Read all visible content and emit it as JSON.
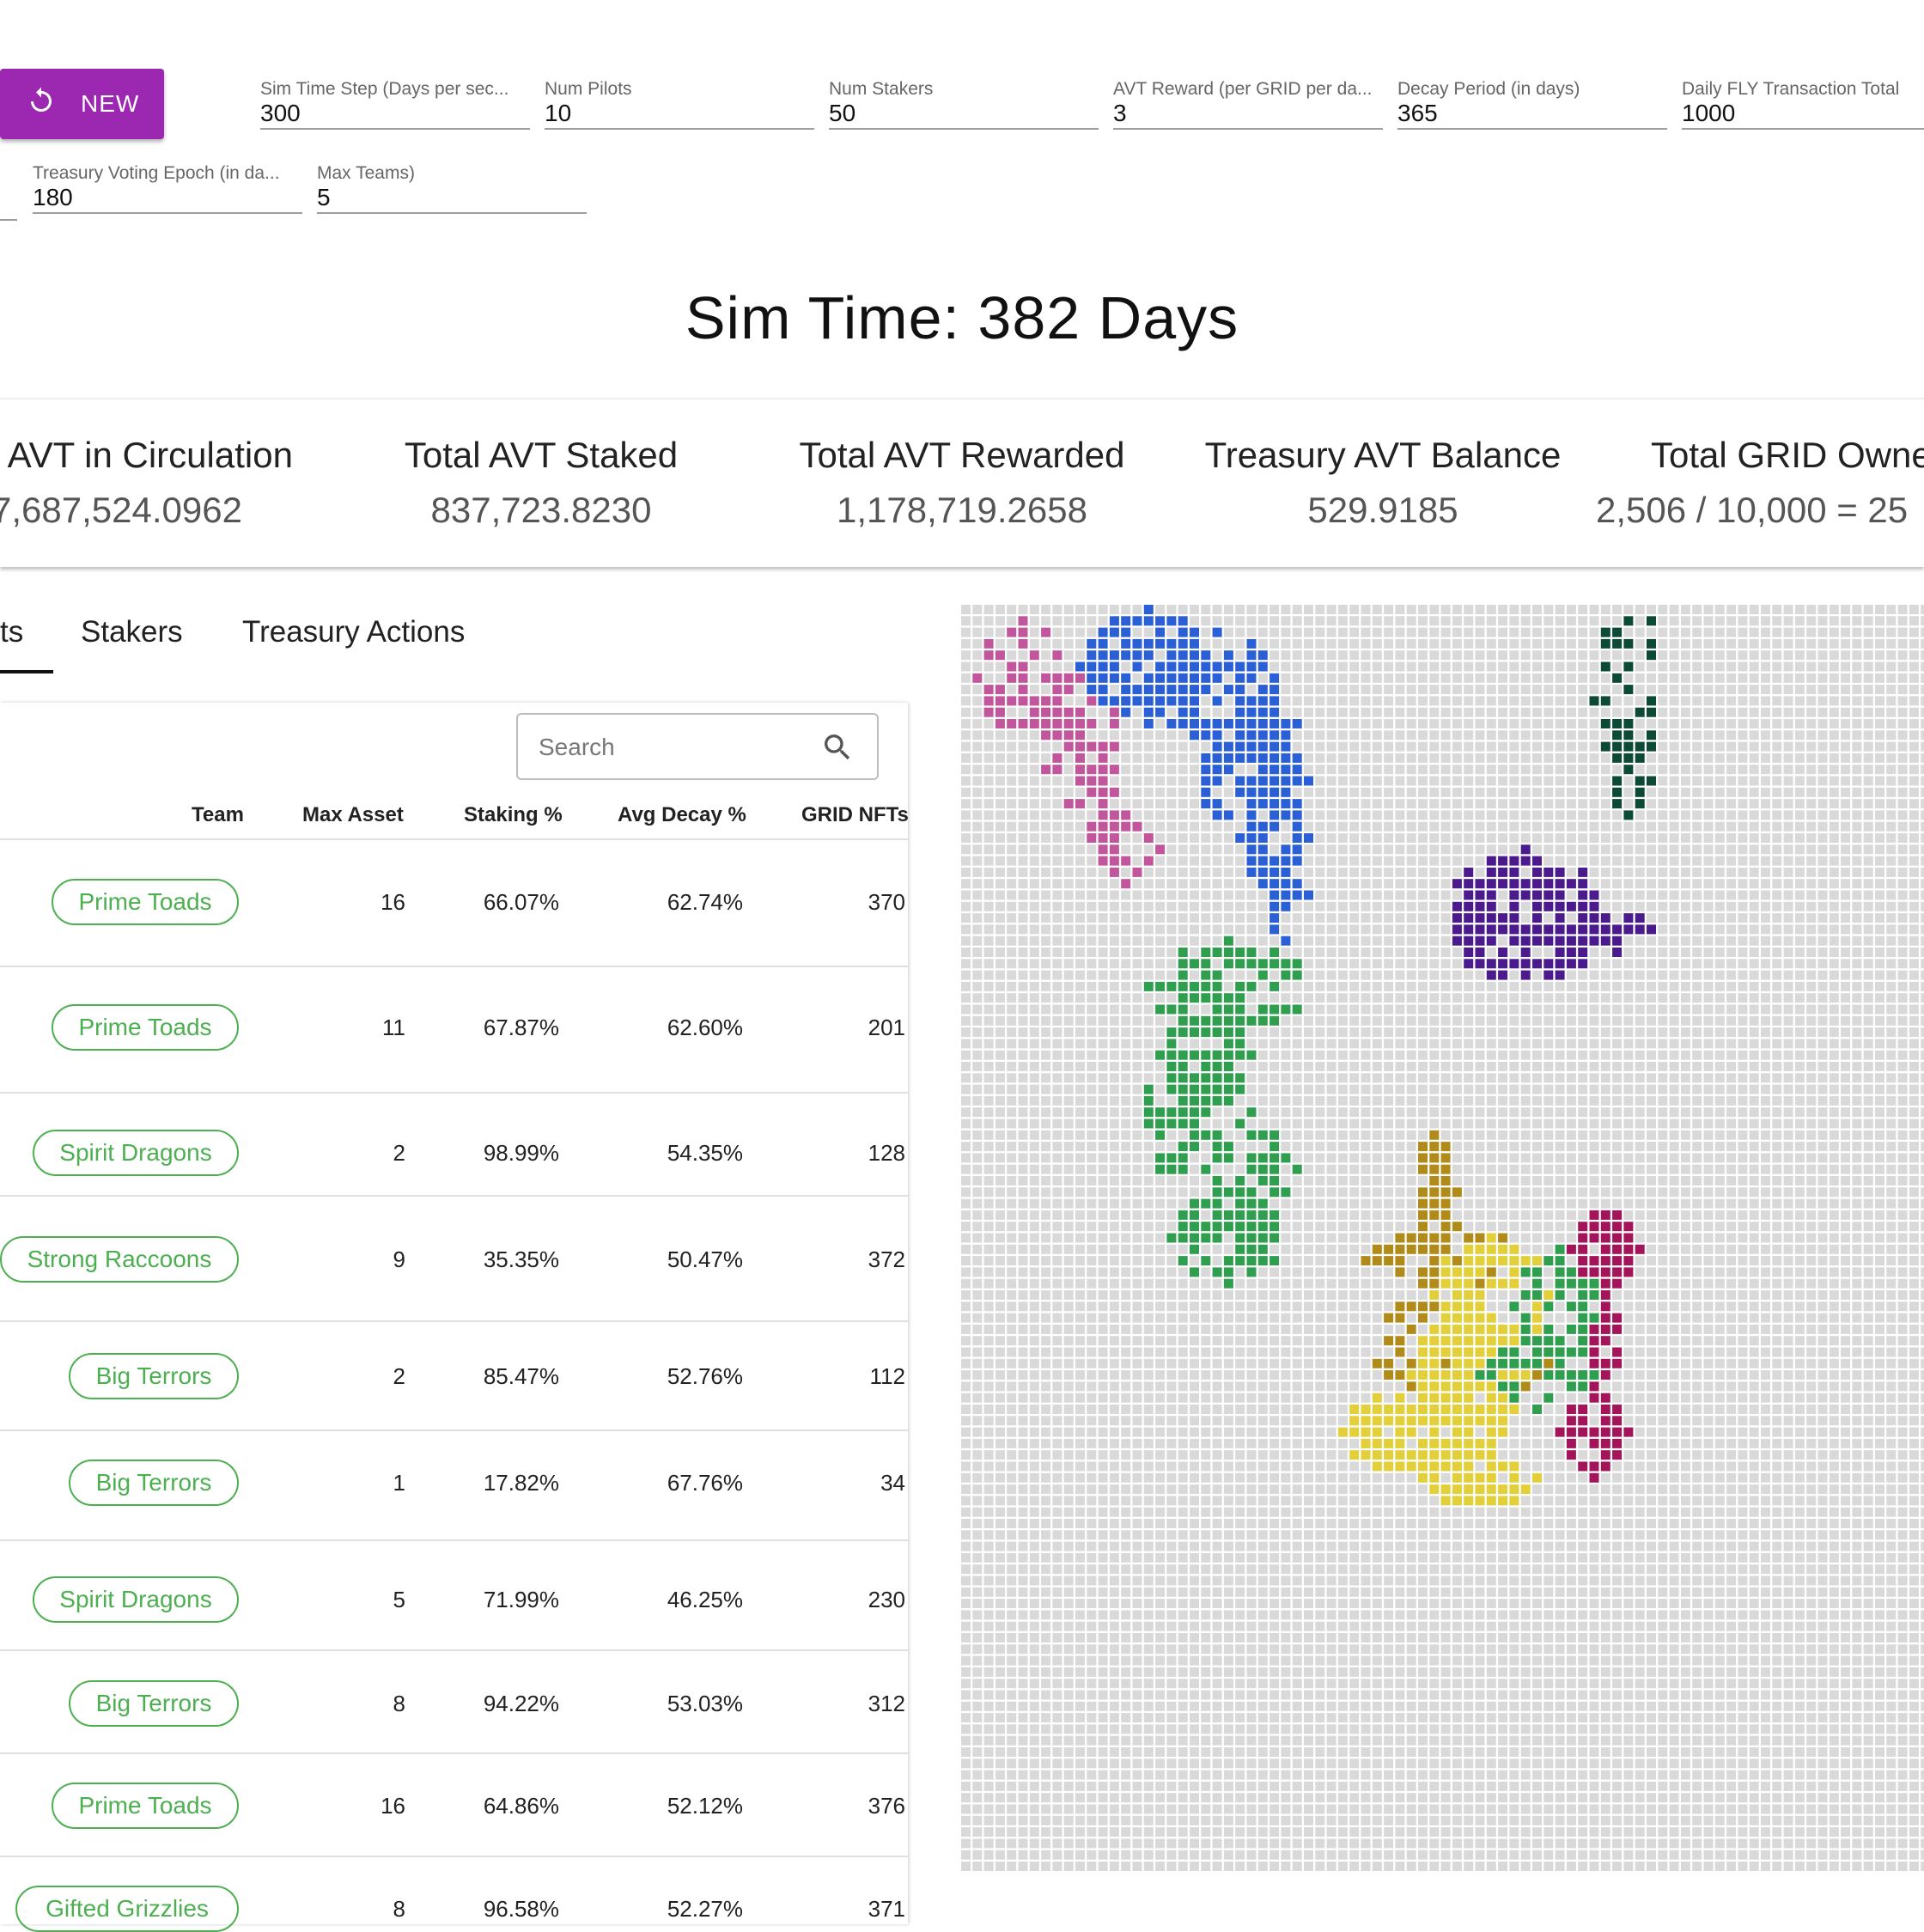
{
  "new_button": {
    "label": "NEW"
  },
  "params": [
    {
      "label": "Sim Time Step (Days per sec...",
      "value": "300"
    },
    {
      "label": "Num Pilots",
      "value": "10"
    },
    {
      "label": "Num Stakers",
      "value": "50"
    },
    {
      "label": "AVT Reward (per GRID per da...",
      "value": "3"
    },
    {
      "label": "Decay Period (in days)",
      "value": "365"
    },
    {
      "label": "Daily FLY Transaction Total",
      "value": "1000"
    },
    {
      "label": "Treasury Voting Epoch (in da...",
      "value": "180"
    },
    {
      "label": "Max Teams)",
      "value": "5"
    }
  ],
  "sim_time": "Sim Time: 382 Days",
  "stats": [
    {
      "title": "l AVT in Circulation",
      "value": "7,687,524.0962"
    },
    {
      "title": "Total AVT Staked",
      "value": "837,723.8230"
    },
    {
      "title": "Total AVT Rewarded",
      "value": "1,178,719.2658"
    },
    {
      "title": "Treasury AVT Balance",
      "value": "529.9185"
    },
    {
      "title": "Total GRID Owne",
      "value": "2,506 / 10,000 = 25"
    }
  ],
  "tabs": [
    "ts",
    "Stakers",
    "Treasury Actions"
  ],
  "search": {
    "placeholder": "Search"
  },
  "table": {
    "headers": [
      "Team",
      "Max Asset",
      "Staking %",
      "Avg Decay %",
      "GRID NFTs"
    ],
    "rows": [
      {
        "team": "Prime Toads",
        "max_asset": "16",
        "staking": "66.07%",
        "decay": "62.74%",
        "grid": "370"
      },
      {
        "team": "Prime Toads",
        "max_asset": "11",
        "staking": "67.87%",
        "decay": "62.60%",
        "grid": "201"
      },
      {
        "team": "Spirit Dragons",
        "max_asset": "2",
        "staking": "98.99%",
        "decay": "54.35%",
        "grid": "128"
      },
      {
        "team": "Strong Raccoons",
        "max_asset": "9",
        "staking": "35.35%",
        "decay": "50.47%",
        "grid": "372"
      },
      {
        "team": "Big Terrors",
        "max_asset": "2",
        "staking": "85.47%",
        "decay": "52.76%",
        "grid": "112"
      },
      {
        "team": "Big Terrors",
        "max_asset": "1",
        "staking": "17.82%",
        "decay": "67.76%",
        "grid": "34"
      },
      {
        "team": "Spirit Dragons",
        "max_asset": "5",
        "staking": "71.99%",
        "decay": "46.25%",
        "grid": "230"
      },
      {
        "team": "Big Terrors",
        "max_asset": "8",
        "staking": "94.22%",
        "decay": "53.03%",
        "grid": "312"
      },
      {
        "team": "Prime Toads",
        "max_asset": "16",
        "staking": "64.86%",
        "decay": "52.12%",
        "grid": "376"
      },
      {
        "team": "Gifted Grizzlies",
        "max_asset": "8",
        "staking": "96.58%",
        "decay": "52.27%",
        "grid": "371"
      }
    ]
  },
  "colors": {
    "accent": "#9c27b0",
    "chip": "#4caf50",
    "grid_empty": "#d9d9d9",
    "territories": [
      "#c2569c",
      "#2a5fd6",
      "#0d4a35",
      "#4b1a8c",
      "#2f9e4e",
      "#b08b1a",
      "#e2cf3a",
      "#a3145a"
    ]
  }
}
